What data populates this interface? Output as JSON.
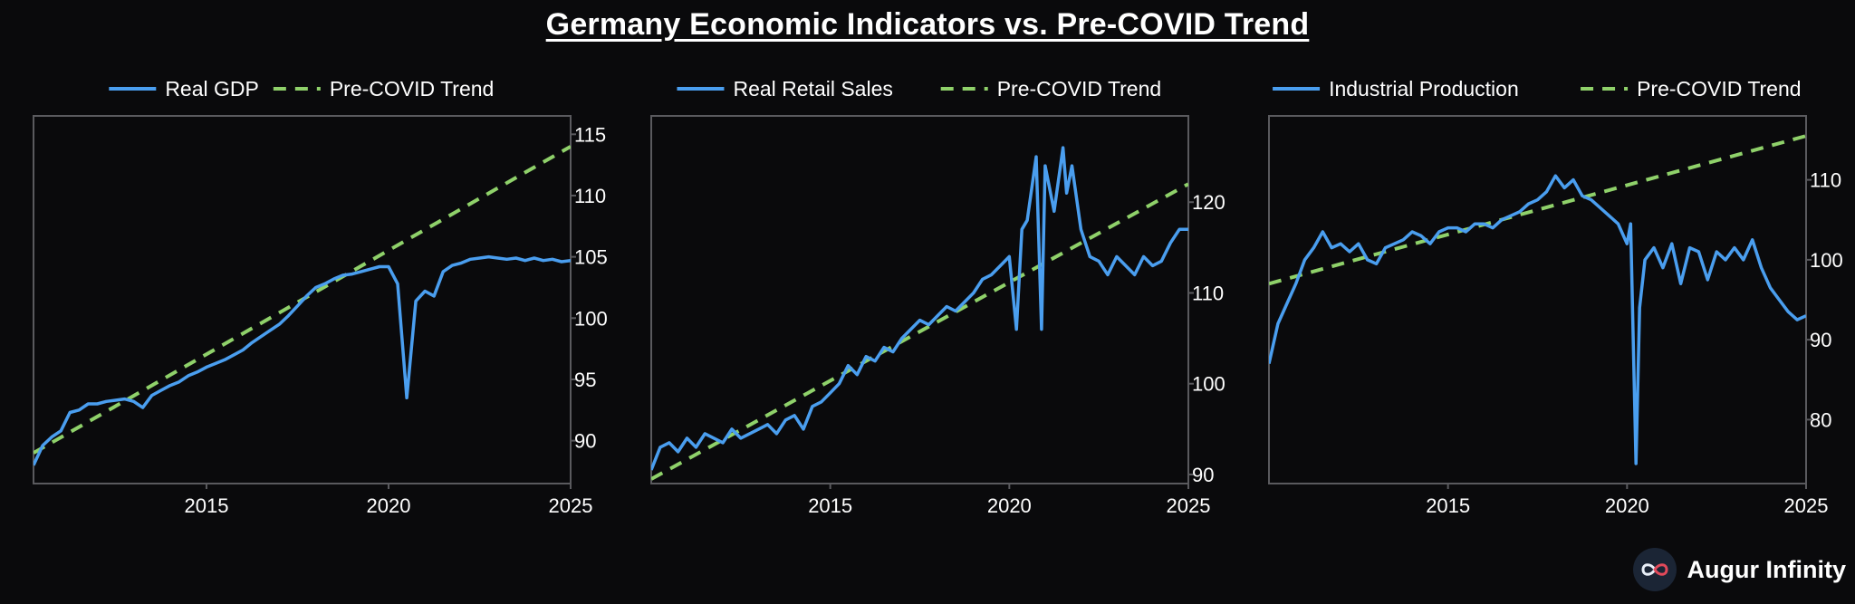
{
  "title": "Germany Economic Indicators vs. Pre-COVID Trend",
  "brand": {
    "name": "Augur Infinity",
    "logo_icon": "infinity-logo-icon"
  },
  "colors": {
    "background": "#0a0a0c",
    "series": "#4a9eef",
    "trend": "#8fd16a",
    "frame": "#5a5a5e",
    "text": "#ffffff"
  },
  "chart_data": [
    {
      "type": "line",
      "title": "",
      "legend": [
        "Real GDP",
        "Pre-COVID Trend"
      ],
      "legend_position": "top-center",
      "xlim": [
        2010.25,
        2025.0
      ],
      "ylim": [
        86.5,
        116.5
      ],
      "xticks": [
        2015,
        2020,
        2025
      ],
      "yticks": [
        90,
        95,
        100,
        105,
        110,
        115
      ],
      "grid": false,
      "series": [
        {
          "name": "Real GDP",
          "style": "solid",
          "x": [
            2010.25,
            2010.5,
            2010.75,
            2011.0,
            2011.25,
            2011.5,
            2011.75,
            2012.0,
            2012.25,
            2012.5,
            2012.75,
            2013.0,
            2013.25,
            2013.5,
            2013.75,
            2014.0,
            2014.25,
            2014.5,
            2014.75,
            2015.0,
            2015.25,
            2015.5,
            2015.75,
            2016.0,
            2016.25,
            2016.5,
            2016.75,
            2017.0,
            2017.25,
            2017.5,
            2017.75,
            2018.0,
            2018.25,
            2018.5,
            2018.75,
            2019.0,
            2019.25,
            2019.5,
            2019.75,
            2020.0,
            2020.25,
            2020.5,
            2020.75,
            2021.0,
            2021.25,
            2021.5,
            2021.75,
            2022.0,
            2022.25,
            2022.5,
            2022.75,
            2023.0,
            2023.25,
            2023.5,
            2023.75,
            2024.0,
            2024.25,
            2024.5,
            2024.75,
            2025.0
          ],
          "values": [
            88.0,
            89.6,
            90.3,
            90.8,
            92.3,
            92.5,
            93.0,
            93.0,
            93.2,
            93.3,
            93.4,
            93.2,
            92.7,
            93.7,
            94.1,
            94.5,
            94.8,
            95.3,
            95.6,
            96.0,
            96.3,
            96.6,
            97.0,
            97.4,
            98.0,
            98.5,
            99.0,
            99.5,
            100.2,
            101.0,
            101.8,
            102.5,
            102.8,
            103.2,
            103.5,
            103.6,
            103.8,
            104.0,
            104.2,
            104.2,
            102.8,
            93.5,
            101.4,
            102.2,
            101.8,
            103.8,
            104.3,
            104.5,
            104.8,
            104.9,
            105.0,
            104.9,
            104.8,
            104.9,
            104.7,
            104.9,
            104.7,
            104.8,
            104.6,
            104.7
          ]
        },
        {
          "name": "Pre-COVID Trend",
          "style": "dashed",
          "x": [
            2010.25,
            2025.0
          ],
          "values": [
            89.0,
            114.0
          ]
        }
      ]
    },
    {
      "type": "line",
      "title": "",
      "legend": [
        "Real Retail Sales",
        "Pre-COVID Trend"
      ],
      "legend_position": "top-center",
      "xlim": [
        2010.0,
        2025.0
      ],
      "ylim": [
        89.0,
        129.5
      ],
      "xticks": [
        2015,
        2020,
        2025
      ],
      "yticks": [
        90,
        100,
        110,
        120
      ],
      "grid": false,
      "series": [
        {
          "name": "Real Retail Sales",
          "style": "solid",
          "x": [
            2010.0,
            2010.25,
            2010.5,
            2010.75,
            2011.0,
            2011.25,
            2011.5,
            2011.75,
            2012.0,
            2012.25,
            2012.5,
            2012.75,
            2013.0,
            2013.25,
            2013.5,
            2013.75,
            2014.0,
            2014.25,
            2014.5,
            2014.75,
            2015.0,
            2015.25,
            2015.5,
            2015.75,
            2016.0,
            2016.25,
            2016.5,
            2016.75,
            2017.0,
            2017.25,
            2017.5,
            2017.75,
            2018.0,
            2018.25,
            2018.5,
            2018.75,
            2019.0,
            2019.25,
            2019.5,
            2019.75,
            2020.0,
            2020.2,
            2020.35,
            2020.5,
            2020.75,
            2020.9,
            2021.0,
            2021.25,
            2021.5,
            2021.6,
            2021.75,
            2022.0,
            2022.25,
            2022.5,
            2022.75,
            2023.0,
            2023.25,
            2023.5,
            2023.75,
            2024.0,
            2024.25,
            2024.5,
            2024.75,
            2025.0
          ],
          "values": [
            90.5,
            93.0,
            93.5,
            92.5,
            94.0,
            93.0,
            94.5,
            94.0,
            93.5,
            95.0,
            94.0,
            94.5,
            95.0,
            95.5,
            94.5,
            96.0,
            96.5,
            95.0,
            97.5,
            98.0,
            99.0,
            100.0,
            102.0,
            101.0,
            103.0,
            102.5,
            104.0,
            103.5,
            105.0,
            106.0,
            107.0,
            106.5,
            107.5,
            108.5,
            108.0,
            109.0,
            110.0,
            111.5,
            112.0,
            113.0,
            114.0,
            106.0,
            117.0,
            118.0,
            125.0,
            106.0,
            124.0,
            119.0,
            126.0,
            121.0,
            124.0,
            117.0,
            114.0,
            113.5,
            112.0,
            114.0,
            113.0,
            112.0,
            114.0,
            113.0,
            113.5,
            115.5,
            117.0,
            117.0
          ]
        },
        {
          "name": "Pre-COVID Trend",
          "style": "dashed",
          "x": [
            2010.0,
            2025.0
          ],
          "values": [
            89.5,
            122.0
          ]
        }
      ]
    },
    {
      "type": "line",
      "title": "",
      "legend": [
        "Industrial Production",
        "Pre-COVID Trend"
      ],
      "legend_position": "top-center",
      "xlim": [
        2010.0,
        2025.0
      ],
      "ylim": [
        72.0,
        118.0
      ],
      "xticks": [
        2015,
        2020,
        2025
      ],
      "yticks": [
        80,
        90,
        100,
        110
      ],
      "grid": false,
      "series": [
        {
          "name": "Industrial Production",
          "style": "solid",
          "x": [
            2010.0,
            2010.25,
            2010.5,
            2010.75,
            2011.0,
            2011.25,
            2011.5,
            2011.75,
            2012.0,
            2012.25,
            2012.5,
            2012.75,
            2013.0,
            2013.25,
            2013.5,
            2013.75,
            2014.0,
            2014.25,
            2014.5,
            2014.75,
            2015.0,
            2015.25,
            2015.5,
            2015.75,
            2016.0,
            2016.25,
            2016.5,
            2016.75,
            2017.0,
            2017.25,
            2017.5,
            2017.75,
            2018.0,
            2018.25,
            2018.5,
            2018.75,
            2019.0,
            2019.25,
            2019.5,
            2019.75,
            2020.0,
            2020.1,
            2020.25,
            2020.35,
            2020.5,
            2020.75,
            2021.0,
            2021.25,
            2021.5,
            2021.75,
            2022.0,
            2022.25,
            2022.5,
            2022.75,
            2023.0,
            2023.25,
            2023.5,
            2023.75,
            2024.0,
            2024.25,
            2024.5,
            2024.75,
            2025.0
          ],
          "values": [
            87.0,
            92.0,
            94.5,
            97.0,
            100.0,
            101.5,
            103.5,
            101.5,
            102.0,
            101.0,
            102.0,
            100.0,
            99.5,
            101.5,
            102.0,
            102.5,
            103.5,
            103.0,
            102.0,
            103.5,
            104.0,
            104.0,
            103.5,
            104.5,
            104.5,
            104.0,
            105.0,
            105.5,
            106.0,
            107.0,
            107.5,
            108.5,
            110.5,
            109.0,
            110.0,
            108.0,
            107.5,
            106.5,
            105.5,
            104.5,
            102.0,
            104.5,
            74.5,
            94.0,
            100.0,
            101.5,
            99.0,
            102.0,
            97.0,
            101.5,
            101.0,
            97.5,
            101.0,
            100.0,
            101.5,
            100.0,
            102.5,
            99.0,
            96.5,
            95.0,
            93.5,
            92.5,
            93.0
          ]
        },
        {
          "name": "Pre-COVID Trend",
          "style": "dashed",
          "x": [
            2010.0,
            2025.0
          ],
          "values": [
            97.0,
            115.5
          ]
        }
      ]
    }
  ]
}
